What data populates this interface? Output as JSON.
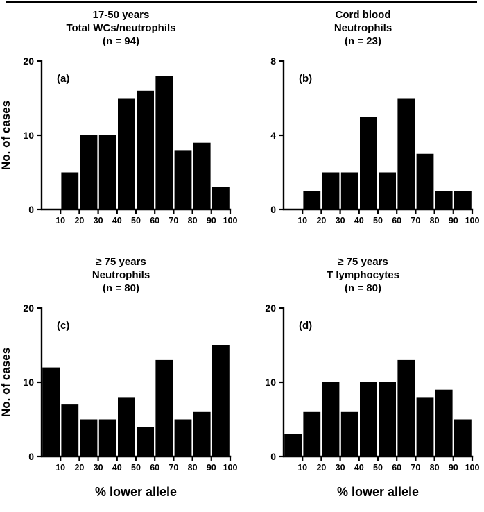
{
  "colors": {
    "bar": "#000000",
    "axis": "#000000",
    "background": "#ffffff"
  },
  "chart_data": [
    {
      "type": "bar",
      "panel_label": "(a)",
      "title_lines": [
        "17-50 years",
        "Total WCs/neutrophils",
        "(n = 94)"
      ],
      "n": 94,
      "ylabel": "No. of cases",
      "bin_width": 10,
      "bin_starts": [
        10,
        20,
        30,
        40,
        50,
        60,
        70,
        80,
        90
      ],
      "values": [
        5,
        10,
        10,
        15,
        16,
        18,
        8,
        9,
        3
      ],
      "xlim": [
        0,
        100
      ],
      "ylim": [
        0,
        20
      ],
      "xticks": [
        10,
        20,
        30,
        40,
        50,
        60,
        70,
        80,
        90,
        100
      ],
      "yticks": [
        0,
        10,
        20
      ]
    },
    {
      "type": "bar",
      "panel_label": "(b)",
      "title_lines": [
        "Cord blood",
        "Neutrophils",
        "(n = 23)"
      ],
      "n": 23,
      "bin_width": 10,
      "bin_starts": [
        10,
        20,
        30,
        40,
        50,
        60,
        70,
        80,
        90
      ],
      "values": [
        1,
        2,
        2,
        5,
        2,
        6,
        3,
        1,
        1
      ],
      "xlim": [
        0,
        100
      ],
      "ylim": [
        0,
        8
      ],
      "xticks": [
        10,
        20,
        30,
        40,
        50,
        60,
        70,
        80,
        90,
        100
      ],
      "yticks": [
        0,
        4,
        8
      ]
    },
    {
      "type": "bar",
      "panel_label": "(c)",
      "title_lines": [
        "≥ 75 years",
        "Neutrophils",
        "(n = 80)"
      ],
      "n": 80,
      "ylabel": "No. of cases",
      "xlabel": "% lower allele",
      "bin_width": 10,
      "bin_starts": [
        0,
        10,
        20,
        30,
        40,
        50,
        60,
        70,
        80,
        90
      ],
      "values": [
        12,
        7,
        5,
        5,
        8,
        4,
        13,
        5,
        6,
        15
      ],
      "xlim": [
        0,
        100
      ],
      "ylim": [
        0,
        20
      ],
      "xticks": [
        10,
        20,
        30,
        40,
        50,
        60,
        70,
        80,
        90,
        100
      ],
      "yticks": [
        0,
        10,
        20
      ]
    },
    {
      "type": "bar",
      "panel_label": "(d)",
      "title_lines": [
        "≥ 75 years",
        "T lymphocytes",
        "(n = 80)"
      ],
      "n": 80,
      "xlabel": "% lower allele",
      "bin_width": 10,
      "bin_starts": [
        0,
        10,
        20,
        30,
        40,
        50,
        60,
        70,
        80,
        90
      ],
      "values": [
        3,
        6,
        10,
        6,
        10,
        10,
        13,
        8,
        9,
        5
      ],
      "xlim": [
        0,
        100
      ],
      "ylim": [
        0,
        20
      ],
      "xticks": [
        10,
        20,
        30,
        40,
        50,
        60,
        70,
        80,
        90,
        100
      ],
      "yticks": [
        0,
        10,
        20
      ]
    }
  ]
}
